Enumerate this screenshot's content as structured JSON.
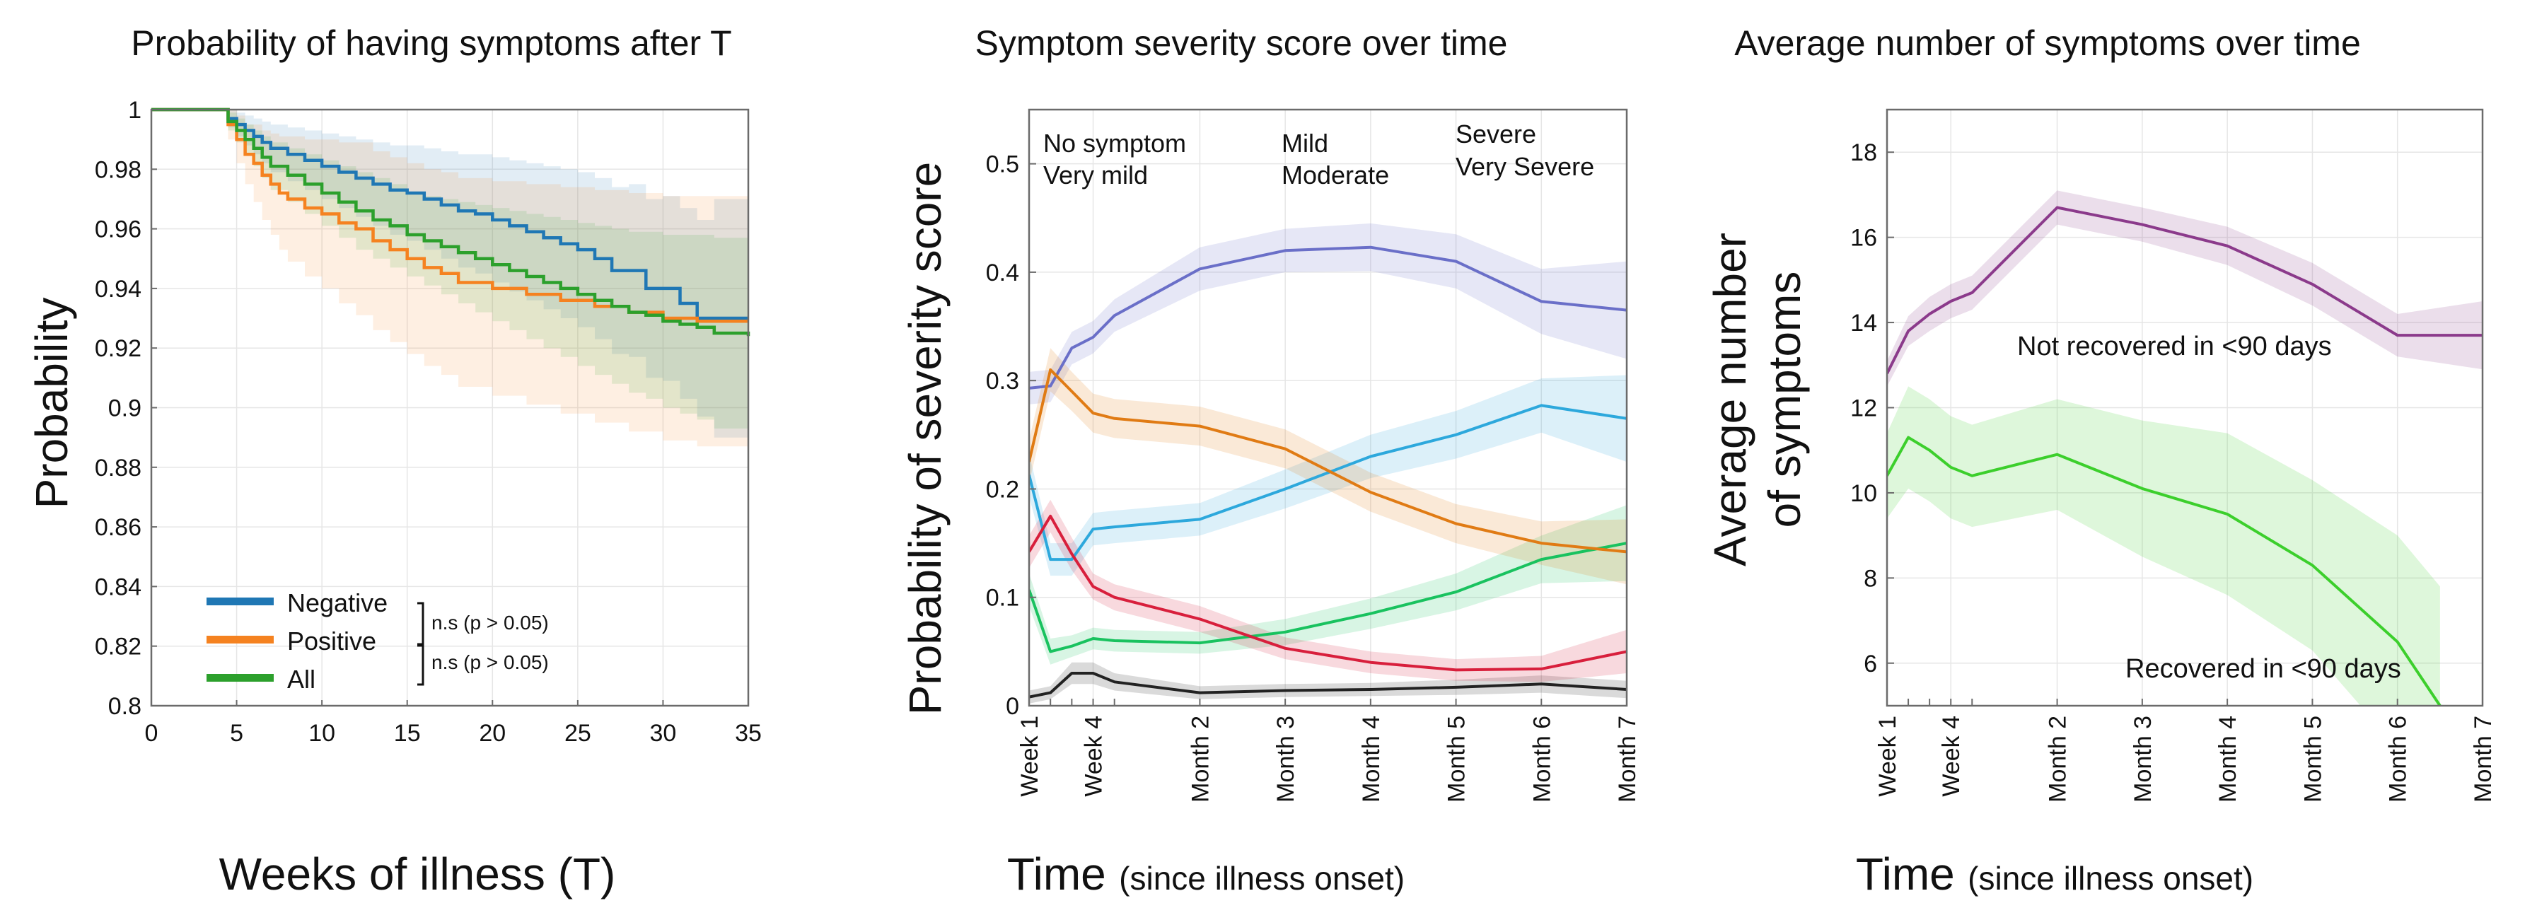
{
  "chart_data": [
    {
      "type": "line",
      "subtype": "step",
      "title": "Probability of having symptoms after T",
      "xlabel": "Weeks of illness (T)",
      "ylabel": "Probability",
      "xlim": [
        0,
        35
      ],
      "ylim": [
        0.8,
        1.0
      ],
      "x_ticks": [
        0,
        5,
        10,
        15,
        20,
        25,
        30,
        35
      ],
      "x_tick_labels": [
        "0",
        "5",
        "10",
        "15",
        "20",
        "25",
        "30",
        "35"
      ],
      "y_ticks": [
        0.8,
        0.82,
        0.84,
        0.86,
        0.88,
        0.9,
        0.92,
        0.94,
        0.96,
        0.98,
        1.0
      ],
      "y_tick_labels": [
        "0.8",
        "0.82",
        "0.84",
        "0.86",
        "0.88",
        "0.9",
        "0.92",
        "0.94",
        "0.96",
        "0.98",
        "1"
      ],
      "grid": true,
      "legend_position": "bottom-left",
      "series": [
        {
          "name": "Negative",
          "color": "#1f77b4",
          "x": [
            0,
            4,
            4.5,
            5,
            5.5,
            6,
            6.5,
            7,
            8,
            9,
            10,
            11,
            12,
            13,
            14,
            15,
            16,
            17,
            18,
            19,
            20,
            21,
            22,
            23,
            24,
            25,
            26,
            27,
            28,
            29,
            30,
            31,
            32,
            33,
            35
          ],
          "y": [
            1.0,
            1.0,
            0.997,
            0.995,
            0.993,
            0.991,
            0.989,
            0.987,
            0.985,
            0.983,
            0.981,
            0.979,
            0.977,
            0.975,
            0.973,
            0.972,
            0.97,
            0.968,
            0.966,
            0.965,
            0.963,
            0.961,
            0.959,
            0.957,
            0.955,
            0.953,
            0.95,
            0.946,
            0.946,
            0.94,
            0.94,
            0.935,
            0.93,
            0.93,
            0.93
          ],
          "ci_lower": [
            1.0,
            1.0,
            0.994,
            0.991,
            0.988,
            0.985,
            0.982,
            0.979,
            0.976,
            0.973,
            0.97,
            0.967,
            0.964,
            0.961,
            0.958,
            0.956,
            0.953,
            0.95,
            0.947,
            0.945,
            0.942,
            0.939,
            0.936,
            0.933,
            0.93,
            0.927,
            0.923,
            0.918,
            0.917,
            0.91,
            0.909,
            0.903,
            0.897,
            0.89,
            0.89
          ],
          "ci_upper": [
            1.0,
            1.0,
            1.0,
            0.999,
            0.998,
            0.997,
            0.996,
            0.995,
            0.994,
            0.993,
            0.992,
            0.991,
            0.99,
            0.989,
            0.988,
            0.988,
            0.987,
            0.986,
            0.985,
            0.985,
            0.984,
            0.983,
            0.982,
            0.981,
            0.98,
            0.979,
            0.977,
            0.974,
            0.975,
            0.97,
            0.971,
            0.967,
            0.963,
            0.97,
            0.97
          ]
        },
        {
          "name": "Positive",
          "color": "#f58220",
          "x": [
            0,
            4,
            4.5,
            5,
            5.5,
            6,
            6.5,
            7,
            7.5,
            8,
            9,
            10,
            11,
            12,
            13,
            14,
            15,
            16,
            17,
            18,
            20,
            22,
            24,
            26,
            28,
            30,
            32,
            35
          ],
          "y": [
            1.0,
            1.0,
            0.995,
            0.99,
            0.985,
            0.982,
            0.978,
            0.975,
            0.972,
            0.97,
            0.967,
            0.965,
            0.962,
            0.96,
            0.956,
            0.953,
            0.95,
            0.947,
            0.945,
            0.942,
            0.94,
            0.938,
            0.936,
            0.934,
            0.932,
            0.93,
            0.929,
            0.929
          ],
          "ci_lower": [
            1.0,
            1.0,
            0.99,
            0.982,
            0.975,
            0.969,
            0.963,
            0.958,
            0.953,
            0.949,
            0.944,
            0.94,
            0.935,
            0.931,
            0.926,
            0.922,
            0.918,
            0.914,
            0.911,
            0.907,
            0.904,
            0.901,
            0.898,
            0.895,
            0.892,
            0.889,
            0.887,
            0.886
          ],
          "ci_upper": [
            1.0,
            1.0,
            1.0,
            0.998,
            0.995,
            0.995,
            0.993,
            0.992,
            0.991,
            0.991,
            0.99,
            0.99,
            0.989,
            0.989,
            0.986,
            0.984,
            0.982,
            0.98,
            0.979,
            0.977,
            0.976,
            0.975,
            0.974,
            0.973,
            0.972,
            0.971,
            0.971,
            0.972
          ]
        },
        {
          "name": "All",
          "color": "#2ca02c",
          "x": [
            0,
            4,
            4.5,
            5,
            5.5,
            6,
            6.5,
            7,
            8,
            9,
            10,
            11,
            12,
            13,
            14,
            15,
            16,
            17,
            18,
            19,
            20,
            21,
            22,
            23,
            24,
            25,
            26,
            27,
            28,
            29,
            30,
            31,
            32,
            33,
            35
          ],
          "y": [
            1.0,
            1.0,
            0.996,
            0.993,
            0.99,
            0.987,
            0.984,
            0.981,
            0.978,
            0.975,
            0.972,
            0.969,
            0.966,
            0.963,
            0.961,
            0.958,
            0.956,
            0.954,
            0.952,
            0.95,
            0.948,
            0.946,
            0.944,
            0.942,
            0.94,
            0.938,
            0.936,
            0.934,
            0.932,
            0.931,
            0.929,
            0.928,
            0.927,
            0.925,
            0.924
          ],
          "ci_lower": [
            1.0,
            1.0,
            0.993,
            0.989,
            0.985,
            0.981,
            0.977,
            0.973,
            0.969,
            0.965,
            0.961,
            0.957,
            0.953,
            0.95,
            0.947,
            0.944,
            0.941,
            0.938,
            0.935,
            0.932,
            0.929,
            0.926,
            0.923,
            0.92,
            0.917,
            0.914,
            0.911,
            0.908,
            0.905,
            0.903,
            0.9,
            0.898,
            0.896,
            0.893,
            0.891
          ],
          "ci_upper": [
            1.0,
            1.0,
            0.999,
            0.997,
            0.995,
            0.993,
            0.991,
            0.989,
            0.987,
            0.985,
            0.983,
            0.981,
            0.979,
            0.977,
            0.975,
            0.972,
            0.971,
            0.97,
            0.969,
            0.968,
            0.967,
            0.966,
            0.965,
            0.964,
            0.963,
            0.962,
            0.961,
            0.96,
            0.959,
            0.959,
            0.958,
            0.958,
            0.958,
            0.957,
            0.957
          ]
        }
      ],
      "annotations": [
        "n.s (p > 0.05)",
        "n.s (p > 0.05)"
      ]
    },
    {
      "type": "line",
      "title": "Symptom severity score over time",
      "xlabel": "Time",
      "xlabel_suffix": "(since illness onset)",
      "ylabel": "Probability of severity score",
      "ylim": [
        0,
        0.55
      ],
      "y_ticks": [
        0,
        0.1,
        0.2,
        0.3,
        0.4,
        0.5
      ],
      "y_tick_labels": [
        "0",
        "0.1",
        "0.2",
        "0.3",
        "0.4",
        "0.5"
      ],
      "x_positions": [
        0,
        1,
        2,
        3,
        4,
        8,
        12,
        16,
        20,
        24,
        28
      ],
      "x_ticks": [
        0,
        3,
        8,
        12,
        16,
        20,
        24,
        28
      ],
      "x_tick_labels": [
        "Week 1",
        "Week 4",
        "Month 2",
        "Month 3",
        "Month 4",
        "Month 5",
        "Month 6",
        "Month 7"
      ],
      "grid": true,
      "series": [
        {
          "name": "No symptom",
          "color": "#222222",
          "y": [
            0.008,
            0.012,
            0.03,
            0.03,
            0.022,
            0.012,
            0.014,
            0.015,
            0.017,
            0.02,
            0.015
          ],
          "ci": [
            0.006,
            0.006,
            0.01,
            0.01,
            0.008,
            0.006,
            0.006,
            0.006,
            0.007,
            0.008,
            0.008
          ]
        },
        {
          "name": "Very mild",
          "color": "#19c25f",
          "y": [
            0.107,
            0.05,
            0.055,
            0.062,
            0.06,
            0.058,
            0.068,
            0.085,
            0.105,
            0.135,
            0.15
          ],
          "ci": [
            0.015,
            0.012,
            0.01,
            0.01,
            0.01,
            0.01,
            0.012,
            0.014,
            0.017,
            0.022,
            0.035
          ]
        },
        {
          "name": "Mild",
          "color": "#2da8dc",
          "y": [
            0.213,
            0.135,
            0.135,
            0.163,
            0.165,
            0.172,
            0.2,
            0.23,
            0.25,
            0.277,
            0.265
          ],
          "ci": [
            0.02,
            0.015,
            0.015,
            0.015,
            0.015,
            0.015,
            0.018,
            0.02,
            0.022,
            0.025,
            0.04
          ]
        },
        {
          "name": "Moderate",
          "color": "#6a6fc8",
          "y": [
            0.293,
            0.295,
            0.33,
            0.34,
            0.36,
            0.403,
            0.42,
            0.423,
            0.41,
            0.373,
            0.365
          ],
          "ci": [
            0.015,
            0.015,
            0.015,
            0.015,
            0.015,
            0.02,
            0.02,
            0.022,
            0.025,
            0.03,
            0.045
          ]
        },
        {
          "name": "Severe",
          "color": "#e07b14",
          "y": [
            0.225,
            0.31,
            0.29,
            0.27,
            0.265,
            0.258,
            0.237,
            0.197,
            0.168,
            0.15,
            0.142
          ],
          "ci": [
            0.02,
            0.02,
            0.018,
            0.018,
            0.018,
            0.018,
            0.018,
            0.018,
            0.018,
            0.02,
            0.03
          ]
        },
        {
          "name": "Very Severe",
          "color": "#d81f3c",
          "y": [
            0.142,
            0.175,
            0.14,
            0.11,
            0.1,
            0.08,
            0.053,
            0.04,
            0.033,
            0.034,
            0.05
          ],
          "ci": [
            0.015,
            0.015,
            0.015,
            0.012,
            0.012,
            0.012,
            0.01,
            0.01,
            0.01,
            0.012,
            0.02
          ]
        }
      ]
    },
    {
      "type": "line",
      "title": "Average number of symptoms over time",
      "xlabel": "Time",
      "xlabel_suffix": "(since illness onset)",
      "ylabel": "Average number of symptoms",
      "ylabel_lines": [
        "Average number",
        "of symptoms"
      ],
      "ylim": [
        5,
        19
      ],
      "y_ticks": [
        6,
        8,
        10,
        12,
        14,
        16,
        18
      ],
      "y_tick_labels": [
        "6",
        "8",
        "10",
        "12",
        "14",
        "16",
        "18"
      ],
      "x_positions": [
        0,
        1,
        2,
        3,
        4,
        8,
        12,
        16,
        20,
        24,
        28
      ],
      "x_ticks": [
        0,
        3,
        8,
        12,
        16,
        20,
        24,
        28
      ],
      "x_tick_labels": [
        "Week 1",
        "Week 4",
        "Month 2",
        "Month 3",
        "Month 4",
        "Month 5",
        "Month 6",
        "Month 7"
      ],
      "grid": true,
      "series": [
        {
          "name": "Not recovered in <90 days",
          "color": "#8b3a8b",
          "x": [
            0,
            1,
            2,
            3,
            4,
            8,
            12,
            16,
            20,
            24,
            28
          ],
          "y": [
            12.8,
            13.8,
            14.2,
            14.5,
            14.7,
            16.7,
            16.3,
            15.8,
            14.9,
            13.7,
            13.7
          ],
          "ci": [
            0.3,
            0.35,
            0.4,
            0.4,
            0.4,
            0.4,
            0.4,
            0.45,
            0.5,
            0.5,
            0.8
          ]
        },
        {
          "name": "Recovered in <90 days",
          "color": "#3ccf2c",
          "x": [
            0,
            1,
            2,
            3,
            4,
            8,
            12,
            16,
            20,
            24,
            26
          ],
          "y": [
            10.4,
            11.3,
            11.0,
            10.6,
            10.4,
            10.9,
            10.1,
            9.5,
            8.3,
            6.5,
            5.0
          ],
          "ci": [
            1.0,
            1.2,
            1.2,
            1.2,
            1.2,
            1.3,
            1.6,
            1.9,
            2.0,
            2.5,
            2.8
          ]
        }
      ],
      "annotations": [
        "Not recovered in <90 days",
        "Recovered in <90 days"
      ]
    }
  ]
}
